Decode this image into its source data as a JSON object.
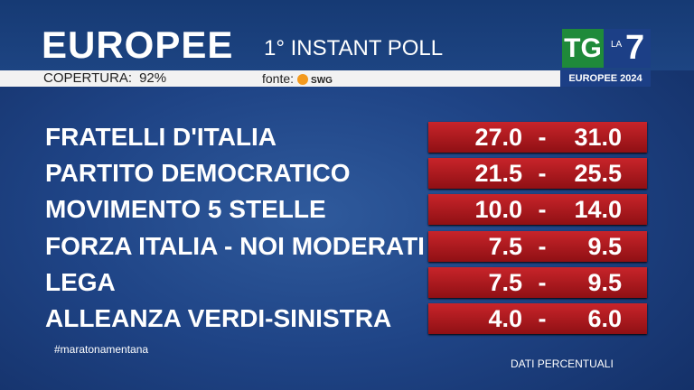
{
  "header": {
    "title": "EUROPEE",
    "subtitle": "1° INSTANT POLL",
    "coverage_label": "COPERTURA:",
    "coverage_value": "92%",
    "source_label": "fonte:",
    "source": "SWG"
  },
  "logo": {
    "tg": "TG",
    "la": "LA",
    "seven": "7",
    "caption": "EUROPEE 2024"
  },
  "table": {
    "rows": [
      [
        "FRATELLI D'ITALIA",
        "27.0",
        "-",
        "31.0"
      ],
      [
        "PARTITO DEMOCRATICO",
        "21.5",
        "-",
        "25.5"
      ],
      [
        "MOVIMENTO 5 STELLE",
        "10.0",
        "-",
        "14.0"
      ],
      [
        "FORZA ITALIA - NOI MODERATI",
        "7.5",
        "-",
        "9.5"
      ],
      [
        "LEGA",
        "7.5",
        "-",
        "9.5"
      ],
      [
        "ALLEANZA VERDI-SINISTRA",
        "4.0",
        "-",
        "6.0"
      ]
    ]
  },
  "footer": {
    "hashtag": "#maratonamentana",
    "note": "DATI PERCENTUALI"
  }
}
